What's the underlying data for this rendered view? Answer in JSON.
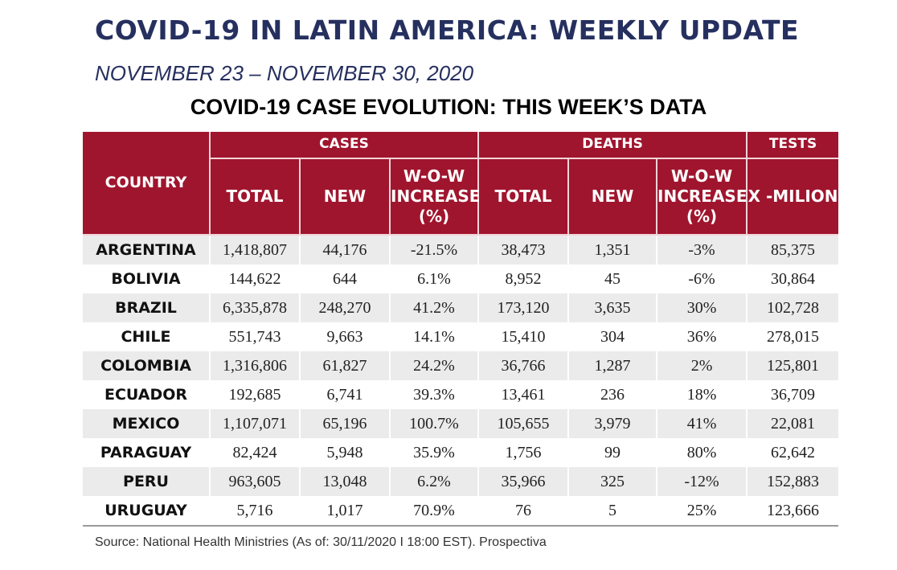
{
  "header": {
    "title": "COVID-19 IN LATIN AMERICA: WEEKLY UPDATE",
    "subtitle": "NOVEMBER 23 – NOVEMBER 30, 2020",
    "table_title": "COVID-19 CASE EVOLUTION: THIS WEEK’S DATA"
  },
  "table": {
    "country_header": "COUNTRY",
    "groups": {
      "cases": "CASES",
      "deaths": "DEATHS",
      "tests": "TESTS"
    },
    "columns": {
      "cases_total": "TOTAL",
      "cases_new": "NEW",
      "cases_wow": "W-O-W INCREASE (%)",
      "deaths_total": "TOTAL",
      "deaths_new": "NEW",
      "deaths_wow": "W-O-W INCREASE (%)",
      "tests": "X -MILION"
    },
    "rows": [
      [
        "ARGENTINA",
        "1,418,807",
        "44,176",
        "-21.5%",
        "38,473",
        "1,351",
        "-3%",
        "85,375"
      ],
      [
        "BOLIVIA",
        "144,622",
        "644",
        "6.1%",
        "8,952",
        "45",
        "-6%",
        "30,864"
      ],
      [
        "BRAZIL",
        "6,335,878",
        "248,270",
        "41.2%",
        "173,120",
        "3,635",
        "30%",
        "102,728"
      ],
      [
        "CHILE",
        "551,743",
        "9,663",
        "14.1%",
        "15,410",
        "304",
        "36%",
        "278,015"
      ],
      [
        "COLOMBIA",
        "1,316,806",
        "61,827",
        "24.2%",
        "36,766",
        "1,287",
        "2%",
        "125,801"
      ],
      [
        "ECUADOR",
        "192,685",
        "6,741",
        "39.3%",
        "13,461",
        "236",
        "18%",
        "36,709"
      ],
      [
        "MEXICO",
        "1,107,071",
        "65,196",
        "100.7%",
        "105,655",
        "3,979",
        "41%",
        "22,081"
      ],
      [
        "PARAGUAY",
        "82,424",
        "5,948",
        "35.9%",
        "1,756",
        "99",
        "80%",
        "62,642"
      ],
      [
        "PERU",
        "963,605",
        "13,048",
        "6.2%",
        "35,966",
        "325",
        "-12%",
        "152,883"
      ],
      [
        "URUGUAY",
        "5,716",
        "1,017",
        "70.9%",
        "76",
        "5",
        "25%",
        "123,666"
      ]
    ]
  },
  "footer": {
    "source": "Source: National Health Ministries (As of: 30/11/2020 I 18:00 EST). Prospectiva"
  },
  "colors": {
    "header_bg": "#a0152e",
    "title_color": "#26305f",
    "zebra": "#ebebeb"
  }
}
